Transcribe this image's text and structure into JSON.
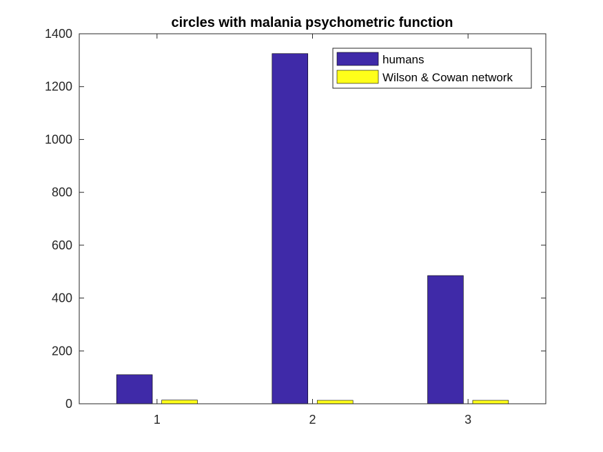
{
  "chart_data": {
    "type": "bar",
    "title": "circles with malania psychometric function",
    "xlabel": "",
    "ylabel": "",
    "categories": [
      "1",
      "2",
      "3"
    ],
    "ylim": [
      0,
      1400
    ],
    "yticks": [
      0,
      200,
      400,
      600,
      800,
      1000,
      1200,
      1400
    ],
    "grid": false,
    "legend_position": "top-right",
    "series": [
      {
        "name": "humans",
        "color": "#3f2aa8",
        "values": [
          110,
          1325,
          485
        ]
      },
      {
        "name": "Wilson & Cowan network",
        "color": "#ffff1a",
        "values": [
          14,
          13,
          13
        ]
      }
    ]
  }
}
